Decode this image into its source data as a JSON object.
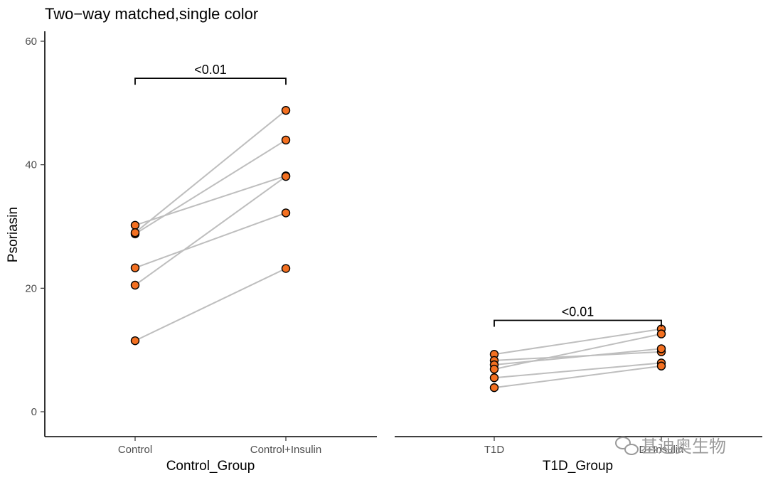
{
  "chart_data": {
    "type": "scatter",
    "title": "Two−way matched,single color",
    "ylabel": "Psoriasin",
    "ylim": [
      -4,
      61
    ],
    "yticks": [
      0,
      20,
      40,
      60
    ],
    "point_color": "#F37021",
    "line_color": "#BEBEBE",
    "facets": [
      {
        "xlabel": "Control_Group",
        "categories": [
          "Control",
          "Control+Insulin"
        ],
        "pairs": [
          [
            30.2,
            38.2
          ],
          [
            28.8,
            44.0
          ],
          [
            29.0,
            48.8
          ],
          [
            23.3,
            32.2
          ],
          [
            20.5,
            38.1
          ],
          [
            11.5,
            23.2
          ]
        ],
        "significance": "<0.01",
        "bracket_y": 54
      },
      {
        "xlabel": "T1D_Group",
        "categories": [
          "T1D",
          "D+Insulin"
        ],
        "pairs": [
          [
            9.3,
            13.4
          ],
          [
            8.3,
            9.7
          ],
          [
            7.6,
            10.2
          ],
          [
            6.9,
            12.6
          ],
          [
            5.5,
            7.9
          ],
          [
            3.9,
            7.4
          ]
        ],
        "significance": "<0.01",
        "bracket_y": 14.8
      }
    ]
  },
  "watermark": "基迪奥生物"
}
